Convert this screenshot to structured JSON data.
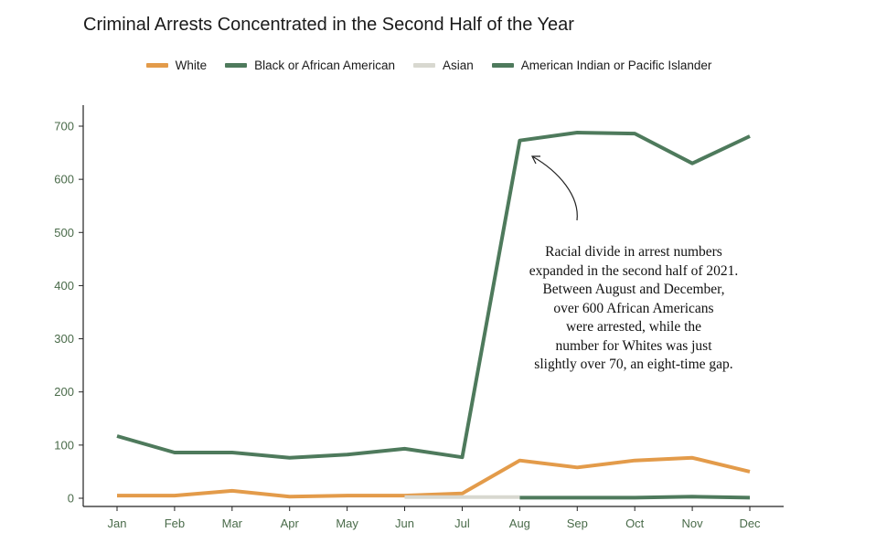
{
  "chart_data": {
    "type": "line",
    "title": "Criminal Arrests Concentrated in the Second Half of the Year",
    "xlabel": "",
    "ylabel": "",
    "categories": [
      "Jan",
      "Feb",
      "Mar",
      "Apr",
      "May",
      "Jun",
      "Jul",
      "Aug",
      "Sep",
      "Oct",
      "Nov",
      "Dec"
    ],
    "ylim": [
      0,
      740
    ],
    "yticks": [
      0,
      100,
      200,
      300,
      400,
      500,
      600,
      700
    ],
    "grid": false,
    "legend_position": "top",
    "series": [
      {
        "name": "White",
        "color": "#E39B4A",
        "values": [
          5,
          5,
          14,
          3,
          5,
          5,
          9,
          71,
          58,
          71,
          76,
          50
        ]
      },
      {
        "name": "Black or African American",
        "color": "#4E7A5C",
        "values": [
          117,
          86,
          86,
          76,
          82,
          93,
          77,
          673,
          688,
          686,
          630,
          681
        ]
      },
      {
        "name": "Asian",
        "color": "#D8D8D0",
        "values": [
          null,
          null,
          null,
          null,
          null,
          2,
          2,
          2,
          null,
          null,
          null,
          null
        ]
      },
      {
        "name": "American Indian or Pacific Islander",
        "color": "#4E7A5C",
        "values": [
          null,
          null,
          null,
          null,
          null,
          null,
          null,
          1,
          1,
          1,
          3,
          1
        ]
      }
    ],
    "annotation": [
      "Racial divide in arrest numbers",
      "expanded in the second half of 2021.",
      "Between August and December,",
      "over 600 African Americans",
      "were arrested, while the",
      "number for Whites was just",
      "slightly over 70, an eight-time gap."
    ]
  }
}
